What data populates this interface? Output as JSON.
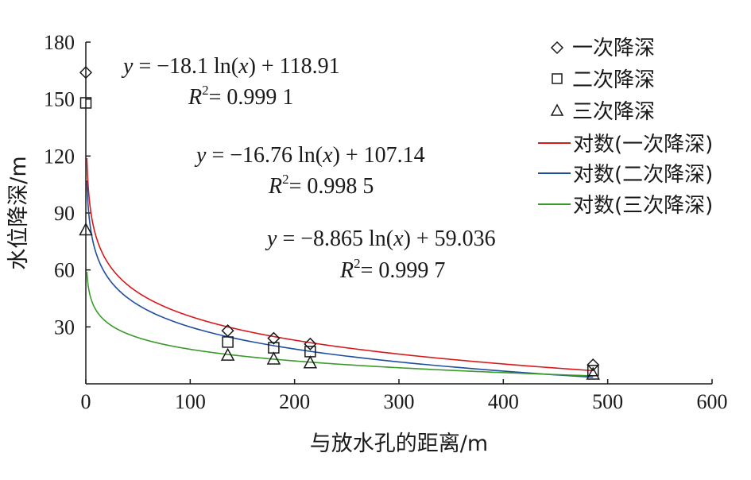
{
  "chart_data": {
    "type": "scatter",
    "xlabel": "与放水孔的距离/m",
    "ylabel": "水位降深/m",
    "xlim": [
      0,
      600
    ],
    "ylim": [
      0,
      180
    ],
    "xticks": [
      "0",
      "100",
      "200",
      "300",
      "400",
      "500",
      "600"
    ],
    "yticks": [
      "30",
      "60",
      "90",
      "120",
      "150",
      "180"
    ],
    "grid": false,
    "legend_position": "top-right",
    "series": [
      {
        "name": "一次降深",
        "kind": "points",
        "marker": "diamond",
        "x": [
          0,
          136,
          180,
          215,
          486
        ],
        "y": [
          164,
          28,
          24,
          21,
          10
        ]
      },
      {
        "name": "二次降深",
        "kind": "points",
        "marker": "square",
        "x": [
          0,
          136,
          180,
          215,
          486
        ],
        "y": [
          148,
          22,
          19,
          17,
          7
        ]
      },
      {
        "name": "三次降深",
        "kind": "points",
        "marker": "triangle",
        "x": [
          0,
          136,
          180,
          215,
          486
        ],
        "y": [
          81,
          15,
          13,
          11,
          5
        ]
      },
      {
        "name": "对数(一次降深)",
        "kind": "fit",
        "a": -18.1,
        "b": 118.91,
        "color": "#d7191c",
        "x_range": [
          1,
          486
        ]
      },
      {
        "name": "对数(二次降深)",
        "kind": "fit",
        "a": -16.76,
        "b": 107.14,
        "color": "#1f4e9e",
        "x_range": [
          1,
          486
        ]
      },
      {
        "name": "对数(三次降深)",
        "kind": "fit",
        "a": -8.865,
        "b": 59.036,
        "color": "#3a9a2a",
        "x_range": [
          1,
          486
        ]
      }
    ],
    "annotations": [
      {
        "eq_y": "y",
        "eq_rest": " = −18.1 ln(",
        "eq_x": "x",
        "eq_tail": ") + 118.91",
        "r2_label": "R",
        "r2_sup": "2",
        "r2_value": "= 0.999 1"
      },
      {
        "eq_y": "y",
        "eq_rest": " = −16.76 ln(",
        "eq_x": "x",
        "eq_tail": ") + 107.14",
        "r2_label": "R",
        "r2_sup": "2",
        "r2_value": "= 0.998 5"
      },
      {
        "eq_y": "y",
        "eq_rest": " = −8.865 ln(",
        "eq_x": "x",
        "eq_tail": ") + 59.036",
        "r2_label": "R",
        "r2_sup": "2",
        "r2_value": "= 0.999 7"
      }
    ]
  }
}
